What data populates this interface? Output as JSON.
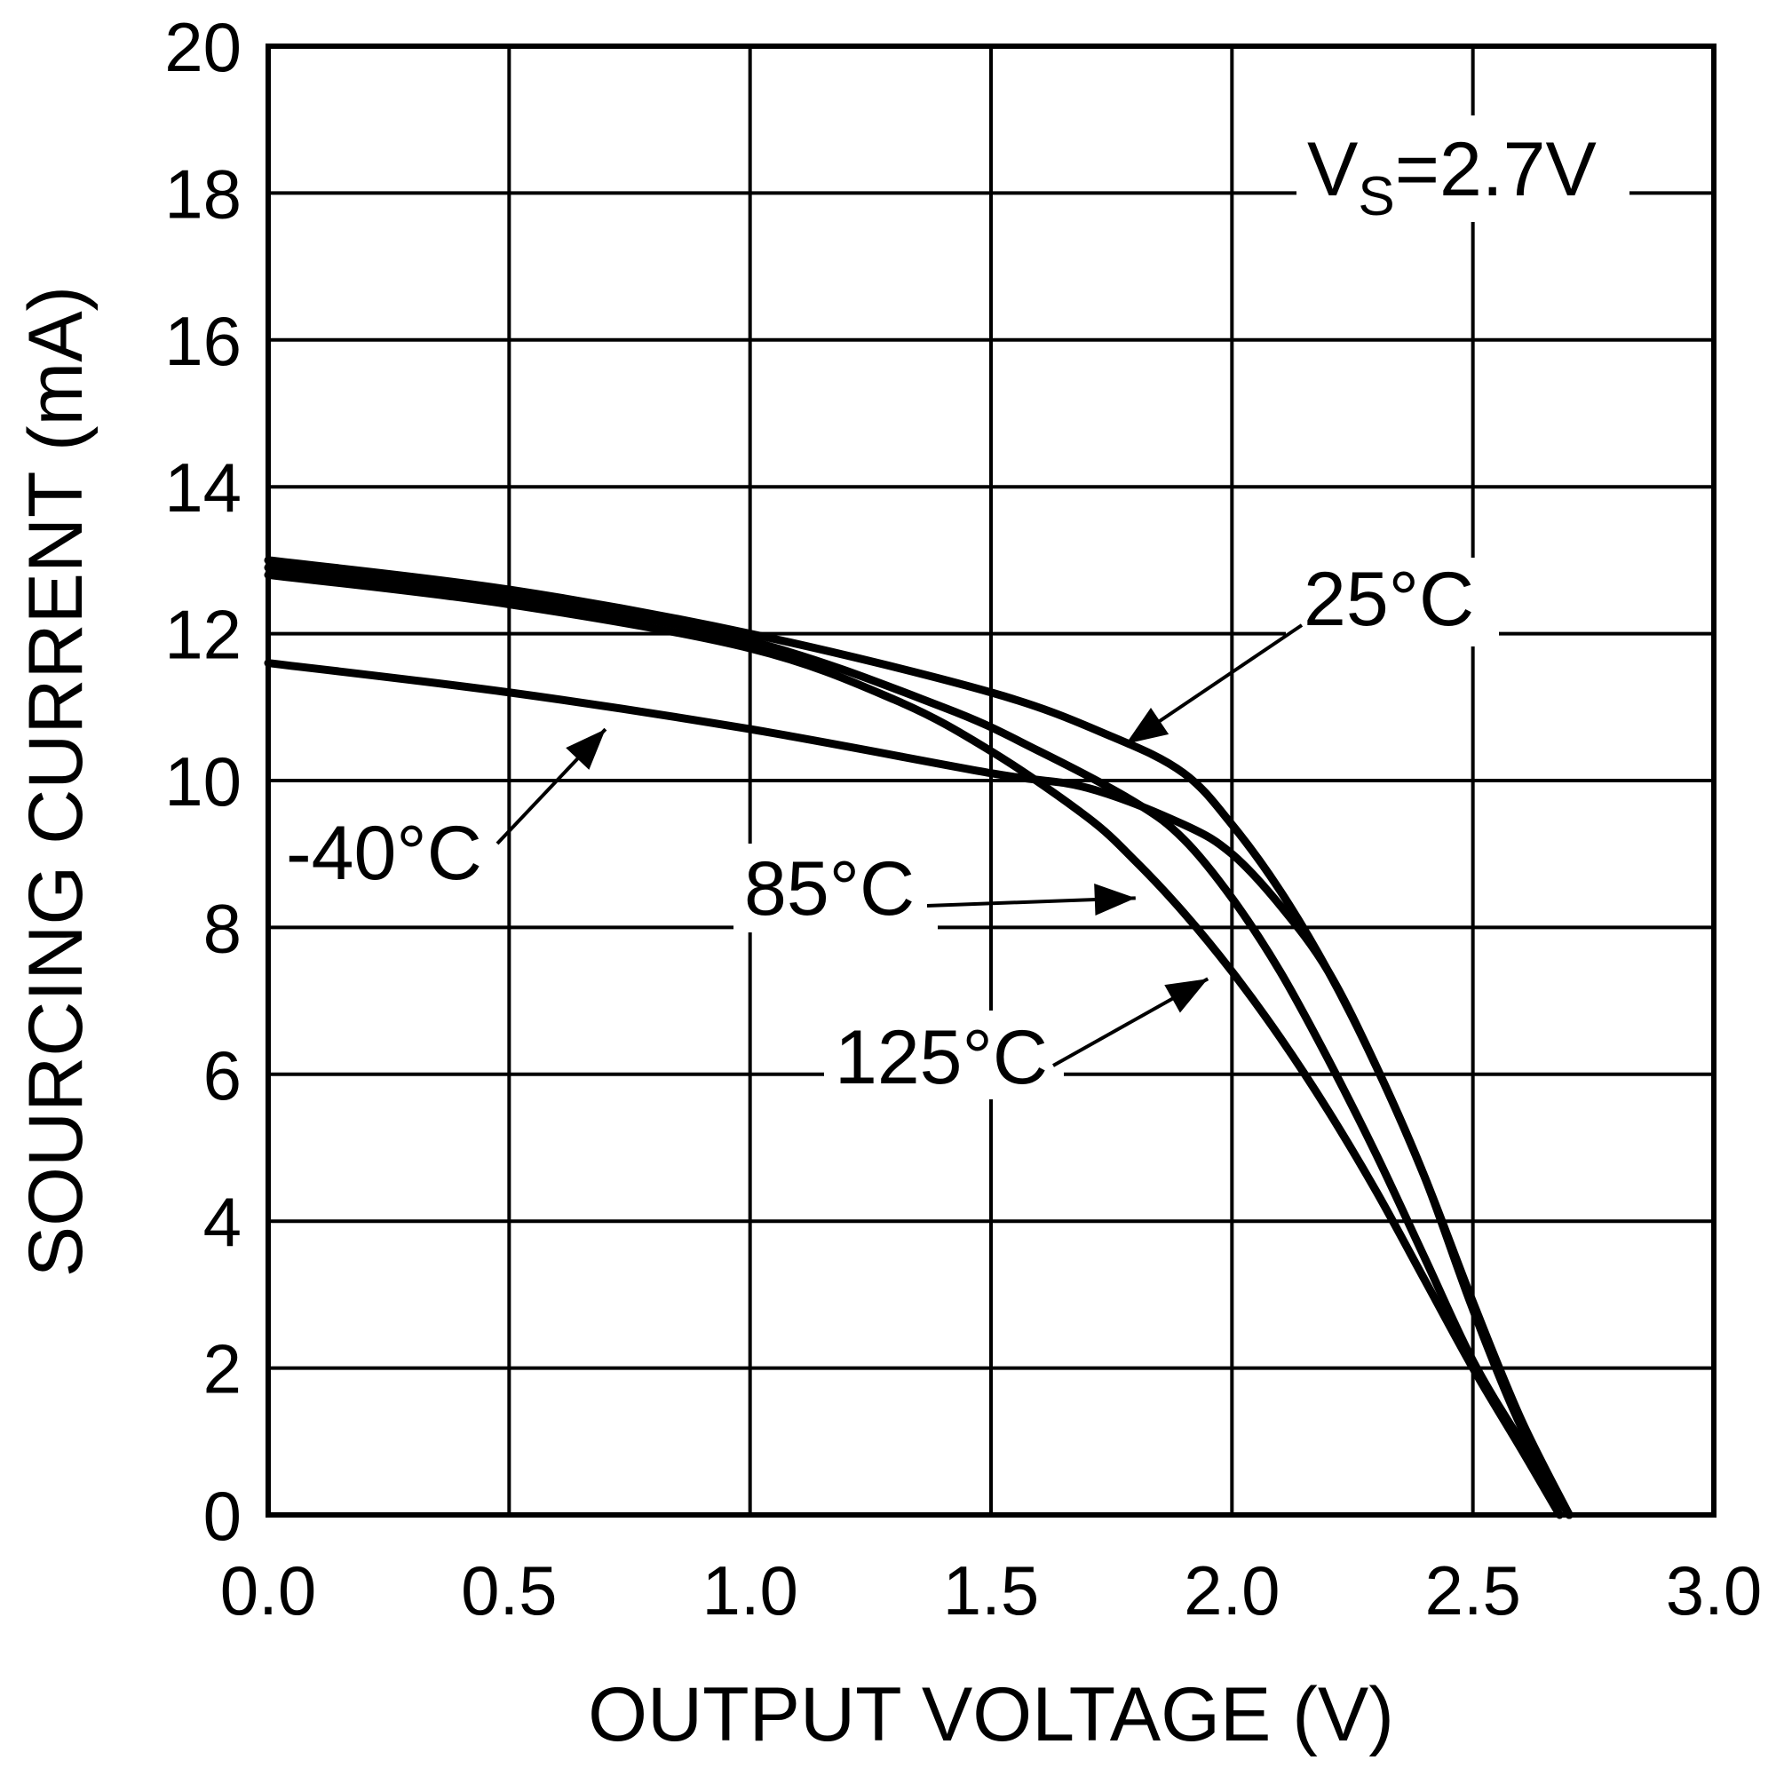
{
  "chart_data": {
    "type": "line",
    "title": "",
    "xlabel": "OUTPUT VOLTAGE (V)",
    "ylabel": "SOURCING CURRENT (mA)",
    "xlim": [
      0,
      3
    ],
    "ylim": [
      0,
      20
    ],
    "grid": true,
    "x_ticks": [
      "0.0",
      "0.5",
      "1.0",
      "1.5",
      "2.0",
      "2.5",
      "3.0"
    ],
    "y_ticks": [
      "0",
      "2",
      "4",
      "6",
      "8",
      "10",
      "12",
      "14",
      "16",
      "18",
      "20"
    ],
    "annotation": {
      "prefix": "V",
      "subscript": "S",
      "suffix": "=2.7V"
    },
    "series": [
      {
        "name": "25°C",
        "x": [
          0.0,
          0.5,
          1.0,
          1.5,
          1.75,
          1.9,
          2.0,
          2.1,
          2.2,
          2.3,
          2.4,
          2.5,
          2.6,
          2.7
        ],
        "y": [
          13.0,
          12.6,
          12.0,
          11.2,
          10.6,
          10.1,
          9.4,
          8.5,
          7.4,
          6.1,
          4.6,
          2.8,
          1.2,
          0.0
        ]
      },
      {
        "name": "85°C",
        "x": [
          0.0,
          0.5,
          1.0,
          1.4,
          1.6,
          1.8,
          1.9,
          2.0,
          2.1,
          2.2,
          2.3,
          2.4,
          2.5,
          2.6,
          2.7
        ],
        "y": [
          12.9,
          12.5,
          11.9,
          11.0,
          10.4,
          9.7,
          9.2,
          8.4,
          7.4,
          6.2,
          4.9,
          3.5,
          2.1,
          1.0,
          0.0
        ]
      },
      {
        "name": "125°C",
        "x": [
          0.0,
          0.5,
          1.0,
          1.3,
          1.5,
          1.7,
          1.8,
          1.9,
          2.0,
          2.1,
          2.2,
          2.3,
          2.4,
          2.5,
          2.6,
          2.68
        ],
        "y": [
          12.8,
          12.4,
          11.8,
          11.1,
          10.4,
          9.5,
          8.9,
          8.2,
          7.4,
          6.5,
          5.5,
          4.4,
          3.2,
          2.0,
          0.9,
          0.0
        ]
      },
      {
        "name": "-40°C",
        "x": [
          0.0,
          0.5,
          1.0,
          1.5,
          1.7,
          1.9,
          2.0,
          2.1,
          2.2,
          2.3,
          2.4,
          2.5,
          2.6,
          2.7
        ],
        "y": [
          11.6,
          11.2,
          10.7,
          10.1,
          9.9,
          9.4,
          9.0,
          8.3,
          7.4,
          6.1,
          4.6,
          2.9,
          1.3,
          0.0
        ]
      }
    ],
    "labels": [
      {
        "text": "25°C",
        "arrow_to": [
          1.78,
          10.5
        ]
      },
      {
        "text": "85°C",
        "arrow_to": [
          1.8,
          8.4
        ]
      },
      {
        "text": "125°C",
        "arrow_to": [
          1.95,
          7.3
        ]
      },
      {
        "text": "-40°C",
        "arrow_to": [
          0.7,
          10.7
        ]
      }
    ]
  }
}
